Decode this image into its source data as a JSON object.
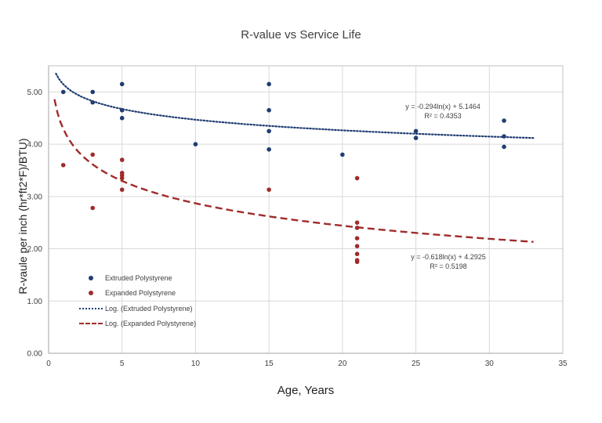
{
  "chart_data": {
    "type": "scatter",
    "title": "R-value vs Service Life",
    "xlabel": "Age, Years",
    "ylabel": "R-vaule per inch (hr*ft2*F)/BTU)",
    "xlim": [
      0,
      35
    ],
    "ylim": [
      0,
      5.5
    ],
    "x_ticks": [
      "0",
      "5",
      "10",
      "15",
      "20",
      "25",
      "30",
      "35"
    ],
    "y_ticks": [
      "0.00",
      "1.00",
      "2.00",
      "3.00",
      "4.00",
      "5.00"
    ],
    "grid": "vertical and horizontal major",
    "legend_position": "bottom-left",
    "series": [
      {
        "name": "Extruded Polystyrene",
        "color": "#1f3d73",
        "points": [
          [
            1,
            5.0
          ],
          [
            3,
            5.0
          ],
          [
            3,
            4.8
          ],
          [
            5,
            5.15
          ],
          [
            5,
            4.65
          ],
          [
            5,
            4.5
          ],
          [
            10,
            4.0
          ],
          [
            15,
            5.15
          ],
          [
            15,
            4.65
          ],
          [
            15,
            4.25
          ],
          [
            15,
            3.9
          ],
          [
            20,
            3.8
          ],
          [
            25,
            4.25
          ],
          [
            25,
            4.12
          ],
          [
            31,
            4.45
          ],
          [
            31,
            4.15
          ],
          [
            31,
            3.95
          ]
        ]
      },
      {
        "name": "Expanded Polystyrene",
        "color": "#a02b2b",
        "points": [
          [
            1,
            3.6
          ],
          [
            3,
            3.8
          ],
          [
            3,
            2.78
          ],
          [
            5,
            3.7
          ],
          [
            5,
            3.45
          ],
          [
            5,
            3.4
          ],
          [
            5,
            3.35
          ],
          [
            5,
            3.13
          ],
          [
            15,
            3.13
          ],
          [
            21,
            3.35
          ],
          [
            21,
            2.5
          ],
          [
            21,
            2.4
          ],
          [
            21,
            2.2
          ],
          [
            21,
            2.05
          ],
          [
            21,
            1.9
          ],
          [
            21,
            1.78
          ],
          [
            21,
            1.75
          ]
        ]
      }
    ],
    "trendlines": [
      {
        "name": "Log. (Extruded Polystyrene)",
        "color": "#1f3d73",
        "style": "dotted",
        "coef_a": -0.294,
        "coef_b": 5.1464,
        "x_range": [
          0.5,
          33
        ],
        "equation": "y = -0.294ln(x) + 5.1464",
        "r2": "R² = 0.4353"
      },
      {
        "name": "Log. (Expanded Polystyrene)",
        "color": "#a02b2b",
        "style": "dashed",
        "coef_a": -0.618,
        "coef_b": 4.2925,
        "x_range": [
          0.4,
          33
        ],
        "equation": "y = -0.618ln(x) + 4.2925",
        "r2": "R² = 0.5198"
      }
    ]
  }
}
